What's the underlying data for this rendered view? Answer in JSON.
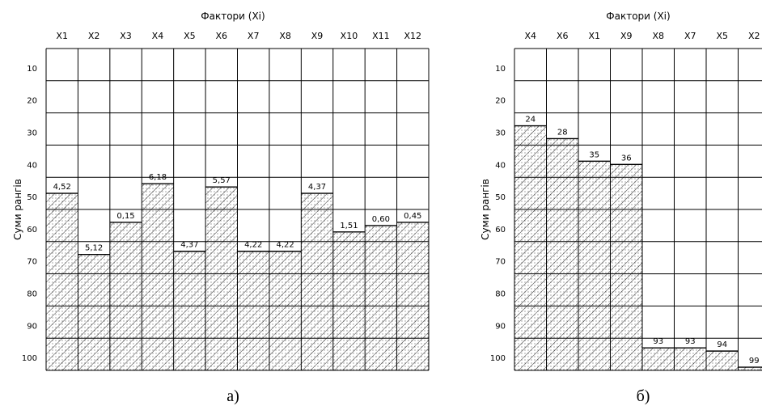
{
  "chart_data": [
    {
      "type": "bar",
      "panel_label": "а)",
      "xlabel": "Фактори (Xi)",
      "ylabel": "Суми рангів",
      "categories": [
        "X1",
        "X2",
        "X3",
        "X4",
        "X5",
        "X6",
        "X7",
        "X8",
        "X9",
        "X10",
        "X11",
        "X12"
      ],
      "values": [
        45,
        64,
        54,
        42,
        63,
        43,
        63,
        63,
        45,
        57,
        55,
        54
      ],
      "value_labels": [
        "4,52",
        "5,12",
        "0,15",
        "6,18",
        "4,37",
        "5,57",
        "4,22",
        "4,22",
        "4,37",
        "1,51",
        "0,60",
        "0,45"
      ],
      "yticks": [
        "10",
        "20",
        "30",
        "40",
        "50",
        "60",
        "70",
        "80",
        "90",
        "100"
      ],
      "ylim": [
        0,
        105
      ],
      "y_inverted": true,
      "grid": true
    },
    {
      "type": "bar",
      "panel_label": "б)",
      "xlabel": "Фактори (Xi)",
      "ylabel": "Суми рангів",
      "categories": [
        "X4",
        "X6",
        "X1",
        "X9",
        "X8",
        "X7",
        "X5",
        "X2"
      ],
      "values": [
        24,
        28,
        35,
        36,
        93,
        93,
        94,
        99
      ],
      "value_labels": [
        "24",
        "28",
        "35",
        "36",
        "93",
        "93",
        "94",
        "99"
      ],
      "yticks": [
        "10",
        "20",
        "30",
        "40",
        "50",
        "60",
        "70",
        "80",
        "90",
        "100"
      ],
      "ylim": [
        0,
        105
      ],
      "y_inverted": true,
      "grid": true
    }
  ]
}
